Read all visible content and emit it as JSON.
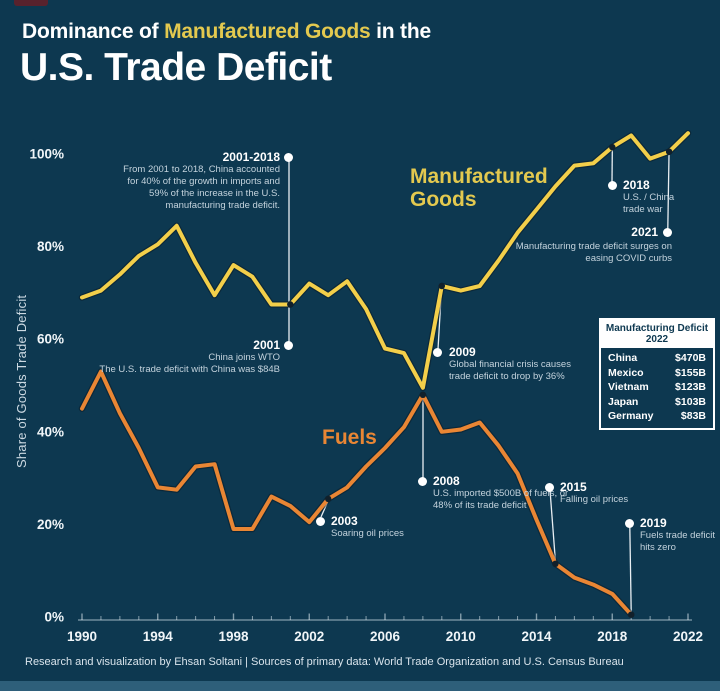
{
  "header": {
    "line1_prefix": "Dominance of ",
    "line1_highlight": "Manufactured Goods",
    "line1_suffix": " in the",
    "line2": "U.S. Trade Deficit"
  },
  "chart_data": {
    "type": "line",
    "title": "Dominance of Manufactured Goods in the U.S. Trade Deficit",
    "xlabel": "",
    "ylabel": "Share of Goods Trade Deficit",
    "x_ticks": [
      "1990",
      "1994",
      "1998",
      "2002",
      "2006",
      "2010",
      "2014",
      "2018",
      "2022"
    ],
    "y_ticks": [
      "0%",
      "20%",
      "40%",
      "60%",
      "80%",
      "100%"
    ],
    "x_range": [
      1990,
      2022
    ],
    "y_range": [
      0,
      107
    ],
    "grid": false,
    "legend_position": "inline-labels",
    "series": [
      {
        "name": "Manufactured Goods",
        "color": "#f3cf4a",
        "start_year": 1990,
        "values": [
          69,
          70.5,
          74,
          78,
          80.5,
          84.5,
          76.5,
          69.5,
          76,
          73.5,
          67.5,
          67.5,
          72,
          69.5,
          72.5,
          66.5,
          58,
          57,
          49.5,
          71.5,
          70.5,
          71.5,
          77,
          83,
          88,
          93,
          97.5,
          98,
          101.5,
          104,
          99,
          100.5,
          104.5
        ]
      },
      {
        "name": "Fuels",
        "color": "#e98634",
        "start_year": 1990,
        "values": [
          45,
          53,
          44,
          36.5,
          28,
          27.5,
          32.5,
          33,
          19,
          19,
          26,
          24,
          20.5,
          25.5,
          28,
          32.5,
          36.5,
          41,
          48,
          40,
          40.5,
          42,
          37,
          31,
          21,
          11.5,
          8.5,
          7,
          5,
          0.5
        ]
      }
    ],
    "markers": [
      {
        "series": 0,
        "year": 2001
      },
      {
        "series": 0,
        "year": 2009
      },
      {
        "series": 0,
        "year": 2018
      },
      {
        "series": 0,
        "year": 2021
      },
      {
        "series": 1,
        "year": 2003
      },
      {
        "series": 1,
        "year": 2008
      },
      {
        "series": 1,
        "year": 2015
      },
      {
        "series": 1,
        "year": 2019
      }
    ]
  },
  "series_labels": {
    "manufactured": "Manufactured Goods",
    "fuels": "Fuels"
  },
  "annotations": {
    "a2001_2018": {
      "year": "2001-2018",
      "text": "From 2001 to 2018, China accounted for 40% of the growth in imports and 59% of the increase in the U.S. manufacturing trade deficit."
    },
    "a2001": {
      "year": "2001",
      "text": "China joins WTO",
      "text2": "The U.S. trade deficit with China was $84B"
    },
    "a2009": {
      "year": "2009",
      "text": "Global financial crisis causes trade deficit to drop by 36%"
    },
    "a2018": {
      "year": "2018",
      "text": "U.S. / China trade war"
    },
    "a2021": {
      "year": "2021",
      "text": "Manufacturing trade deficit surges on easing COVID curbs"
    },
    "a2003": {
      "year": "2003",
      "text": "Soaring oil prices"
    },
    "a2008": {
      "year": "2008",
      "text": "U.S. imported $500B of fuels, or 48% of its trade deficit"
    },
    "a2015": {
      "year": "2015",
      "text": "Falling oil prices"
    },
    "a2019": {
      "year": "2019",
      "text": "Fuels trade deficit hits zero"
    }
  },
  "side_table": {
    "title": "Manufacturing Deficit 2022",
    "rows": [
      {
        "country": "China",
        "value": "$470B"
      },
      {
        "country": "Mexico",
        "value": "$155B"
      },
      {
        "country": "Vietnam",
        "value": "$123B"
      },
      {
        "country": "Japan",
        "value": "$103B"
      },
      {
        "country": "Germany",
        "value": "$83B"
      }
    ]
  },
  "footer": {
    "credit": "Research and visualization by Ehsan Soltani | Sources of primary data: World Trade Organization and U.S. Census Bureau"
  },
  "colors": {
    "background": "#0d3850",
    "manufactured_line": "#f3cf4a",
    "fuels_line": "#e98634",
    "title_highlight": "#e3c94f",
    "bottom_strip": "#2e5f7a",
    "annotation_text": "#c4d3dd"
  }
}
